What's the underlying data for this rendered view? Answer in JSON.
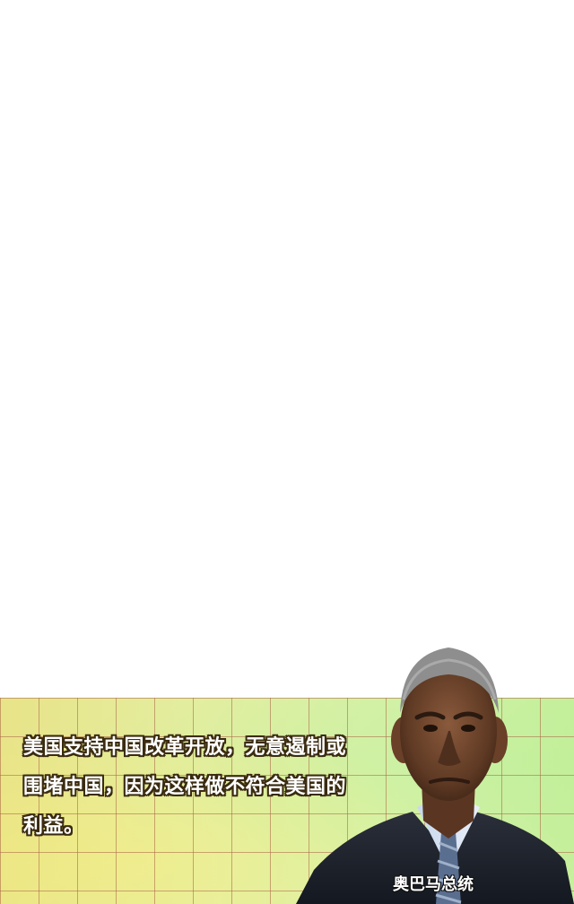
{
  "quote": {
    "line1": "美国支持中国改革开放，无意遏制或",
    "line2": "围堵中国，因为这样做不符合美国的",
    "line3": "利益。"
  },
  "caption": "奥巴马总统",
  "colors": {
    "panel_start": "#e6e282",
    "panel_end": "#c4ee96",
    "grid_line": "#aa6446",
    "text": "#ffffff",
    "text_outline": "#3a2b10"
  },
  "portrait_icon": "person-portrait"
}
